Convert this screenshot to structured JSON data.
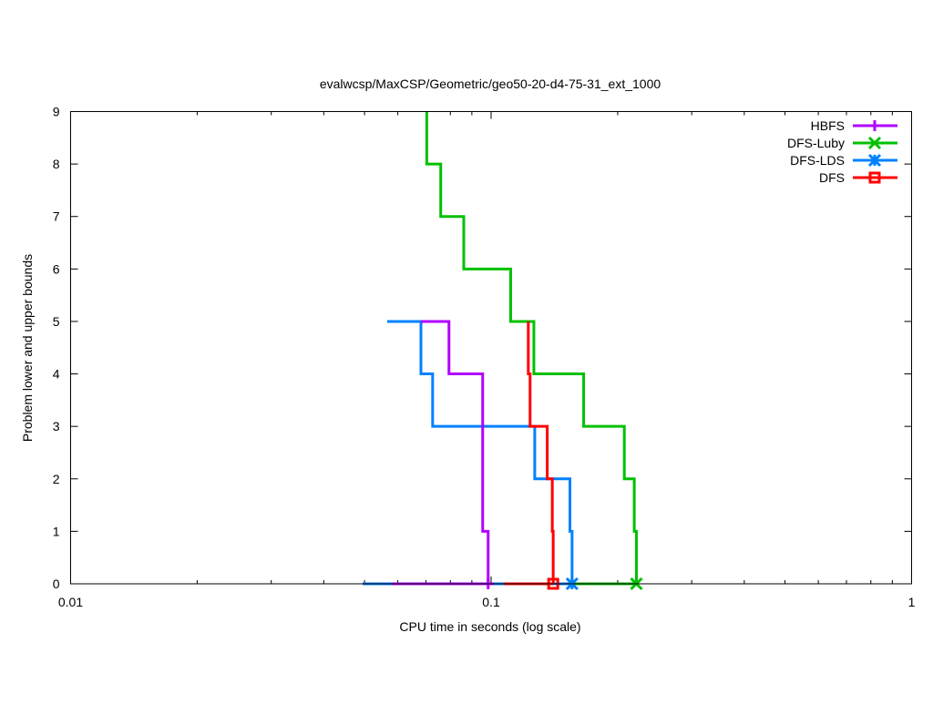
{
  "chart_data": {
    "type": "line",
    "title": "evalwcsp/MaxCSP/Geometric/geo50-20-d4-75-31_ext_1000",
    "xlabel": "CPU time in seconds (log scale)",
    "ylabel": "Problem lower and upper bounds",
    "xscale": "log",
    "xlim": [
      0.01,
      1
    ],
    "ylim": [
      0,
      9
    ],
    "xticks": [
      {
        "value": 0.01,
        "label": "0.01"
      },
      {
        "value": 0.1,
        "label": "0.1"
      },
      {
        "value": 1,
        "label": "1"
      }
    ],
    "yticks": [
      {
        "value": 0,
        "label": "0"
      },
      {
        "value": 1,
        "label": "1"
      },
      {
        "value": 2,
        "label": "2"
      },
      {
        "value": 3,
        "label": "3"
      },
      {
        "value": 4,
        "label": "4"
      },
      {
        "value": 5,
        "label": "5"
      },
      {
        "value": 6,
        "label": "6"
      },
      {
        "value": 7,
        "label": "7"
      },
      {
        "value": 8,
        "label": "8"
      },
      {
        "value": 9,
        "label": "9"
      }
    ],
    "grid": false,
    "legend_position": "top-right",
    "series": [
      {
        "name": "HBFS",
        "color": "#b000ff",
        "marker": "plus",
        "upper": [
          [
            0.0681,
            5
          ],
          [
            0.0794,
            5
          ],
          [
            0.0794,
            4
          ],
          [
            0.0955,
            4
          ],
          [
            0.0955,
            1
          ],
          [
            0.0984,
            1
          ],
          [
            0.0984,
            0
          ]
        ],
        "lower": [
          [
            0.058,
            0
          ],
          [
            0.0984,
            0
          ]
        ]
      },
      {
        "name": "DFS-Luby",
        "color": "#00c000",
        "marker": "x",
        "upper": [
          [
            0.0703,
            9
          ],
          [
            0.0703,
            8
          ],
          [
            0.0759,
            8
          ],
          [
            0.0759,
            7
          ],
          [
            0.0861,
            7
          ],
          [
            0.0861,
            6
          ],
          [
            0.1113,
            6
          ],
          [
            0.1113,
            5
          ],
          [
            0.1264,
            5
          ],
          [
            0.1264,
            4
          ],
          [
            0.166,
            4
          ],
          [
            0.166,
            3
          ],
          [
            0.2074,
            3
          ],
          [
            0.2074,
            2
          ],
          [
            0.219,
            2
          ],
          [
            0.219,
            1
          ],
          [
            0.2216,
            1
          ],
          [
            0.2216,
            0
          ]
        ],
        "lower": [
          [
            0.15,
            0
          ],
          [
            0.2216,
            0
          ]
        ]
      },
      {
        "name": "DFS-LDS",
        "color": "#0080ff",
        "marker": "star",
        "upper": [
          [
            0.0566,
            5
          ],
          [
            0.0681,
            5
          ],
          [
            0.0681,
            4
          ],
          [
            0.0726,
            4
          ],
          [
            0.0726,
            3
          ],
          [
            0.127,
            3
          ],
          [
            0.127,
            2
          ],
          [
            0.154,
            2
          ],
          [
            0.154,
            1
          ],
          [
            0.1558,
            1
          ],
          [
            0.1558,
            0
          ]
        ],
        "lower": [
          [
            0.0495,
            0
          ],
          [
            0.1558,
            0
          ]
        ]
      },
      {
        "name": "DFS",
        "color": "#ff0000",
        "marker": "square",
        "upper": [
          [
            0.1226,
            5
          ],
          [
            0.1226,
            4
          ],
          [
            0.1238,
            4
          ],
          [
            0.1238,
            3
          ],
          [
            0.136,
            3
          ],
          [
            0.136,
            2
          ],
          [
            0.1398,
            2
          ],
          [
            0.1398,
            1
          ],
          [
            0.1405,
            1
          ],
          [
            0.1405,
            0
          ]
        ],
        "lower": [
          [
            0.1074,
            0
          ],
          [
            0.1405,
            0
          ]
        ]
      }
    ]
  }
}
